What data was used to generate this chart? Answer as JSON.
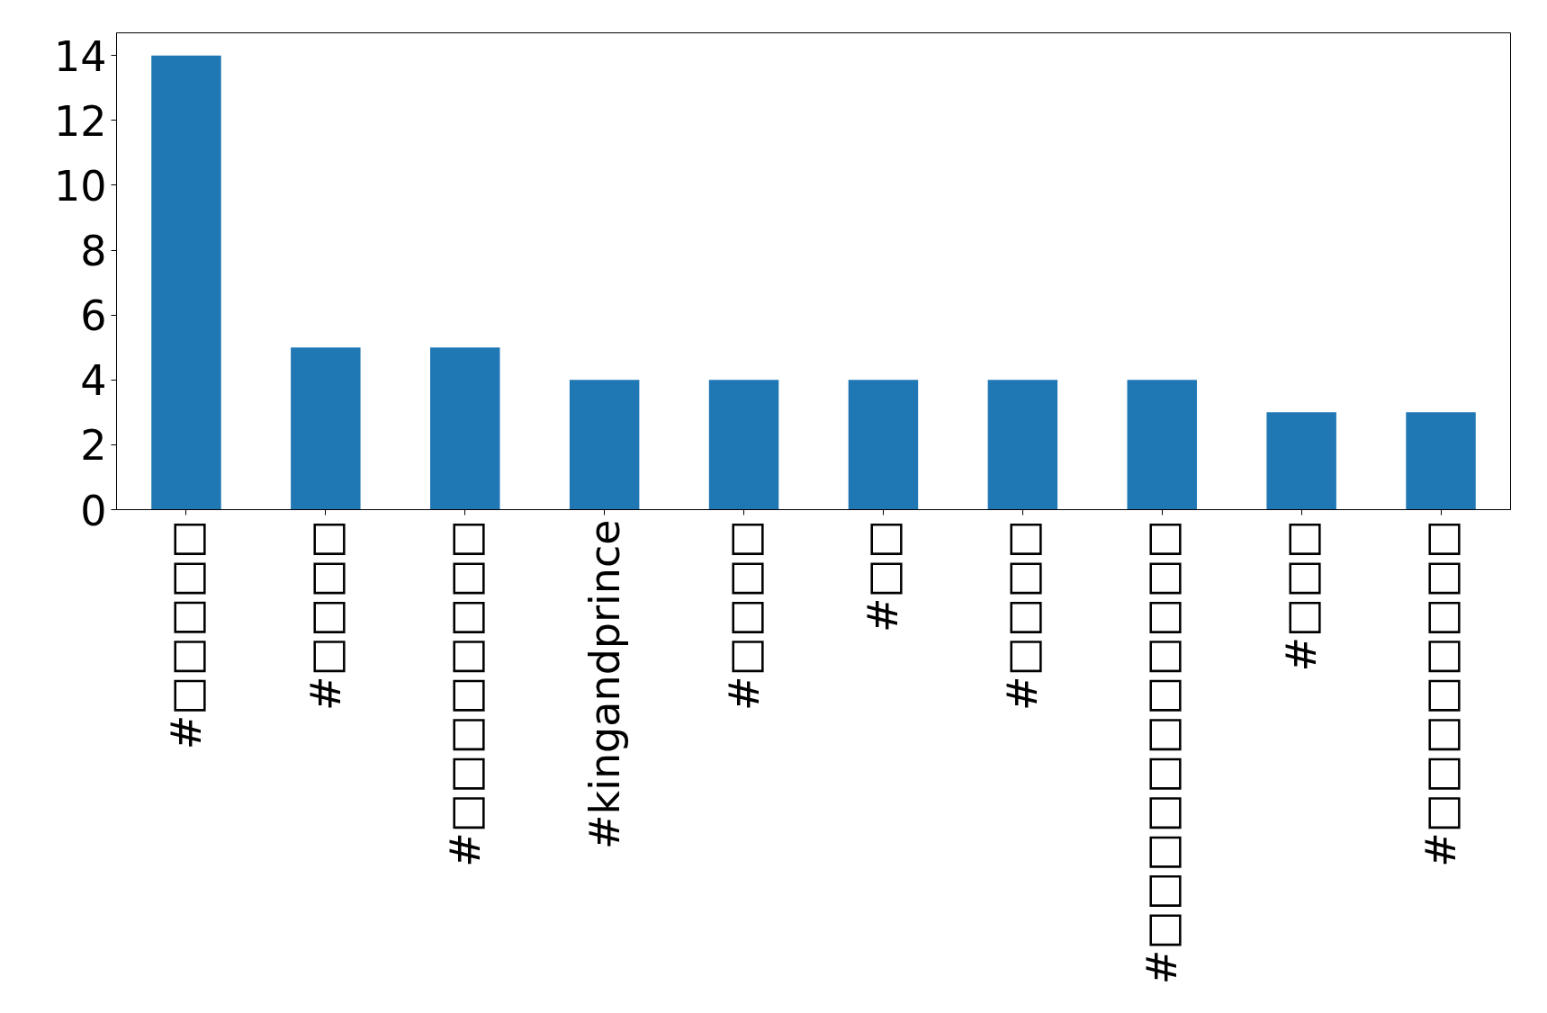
{
  "chart_data": {
    "type": "bar",
    "categories": [
      "#□□□□□",
      "#□□□□",
      "#□□□□□□□□",
      "#kingandprince",
      "#□□□□",
      "#□□",
      "#□□□□",
      "#□□□□□□□□□□□",
      "#□□□",
      "#□□□□□□□□"
    ],
    "values": [
      14,
      5,
      5,
      4,
      4,
      4,
      4,
      4,
      3,
      3
    ],
    "color": "#1f77b4",
    "ylim": [
      0,
      14.7
    ],
    "yticks": [
      0,
      2,
      4,
      6,
      8,
      10,
      12,
      14
    ],
    "grid": false
  }
}
